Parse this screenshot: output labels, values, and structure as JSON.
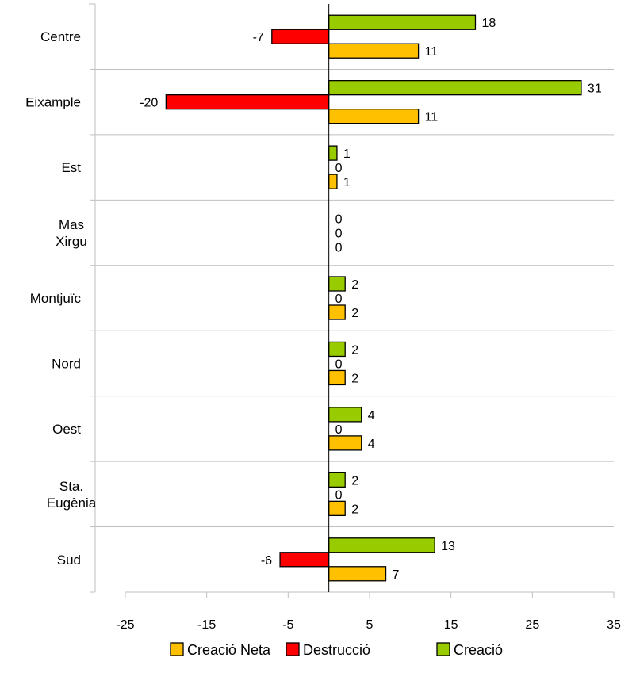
{
  "chart_data": {
    "type": "bar",
    "orientation": "horizontal",
    "categories": [
      [
        "Centre"
      ],
      [
        "Eixample"
      ],
      [
        "Est"
      ],
      [
        "Mas",
        "Xirgu"
      ],
      [
        "Montjuïc"
      ],
      [
        "Nord"
      ],
      [
        "Oest"
      ],
      [
        "Sta.",
        "Eugènia"
      ],
      [
        "Sud"
      ]
    ],
    "series": [
      {
        "name": "Creació",
        "color": "#99CC00",
        "values": [
          18,
          31,
          1,
          0,
          2,
          2,
          4,
          2,
          13
        ]
      },
      {
        "name": "Destrucció",
        "color": "#FF0000",
        "values": [
          -7,
          -20,
          0,
          0,
          0,
          0,
          0,
          0,
          -6
        ]
      },
      {
        "name": "Creació Neta",
        "color": "#FFC000",
        "values": [
          11,
          11,
          1,
          0,
          2,
          2,
          4,
          2,
          7
        ]
      }
    ],
    "legend_order": [
      "Creació Neta",
      "Destrucció",
      "Creació"
    ],
    "xlim": [
      -25,
      35
    ],
    "xticks": [
      -25,
      -15,
      -5,
      5,
      15,
      25,
      35
    ],
    "grid": "horizontal separators between categories",
    "legend_position": "bottom",
    "data_labels": true
  }
}
